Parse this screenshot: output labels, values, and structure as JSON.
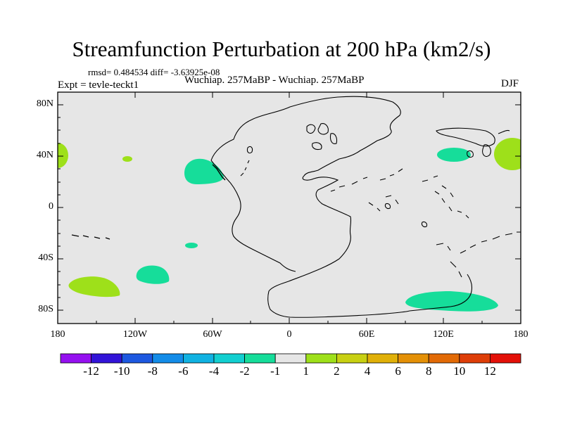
{
  "title": "Streamfunction Perturbation at 200 hPa (km2/s)",
  "stats": "rmsd= 0.484534 diff= -3.63925e-08",
  "experiment": "Expt = tevle-teckt1",
  "subtitle": "Wuchiap. 257MaBP - Wuchiap. 257MaBP",
  "season": "DJF",
  "lat_labels": [
    "80N",
    "40N",
    "0",
    "40S",
    "80S"
  ],
  "lon_labels": [
    "180",
    "120W",
    "60W",
    "0",
    "60E",
    "120E",
    "180"
  ],
  "colorbar": {
    "labels": [
      "-12",
      "-10",
      "-8",
      "-6",
      "-4",
      "-2",
      "-1",
      "1",
      "2",
      "4",
      "6",
      "8",
      "10",
      "12"
    ],
    "colors": [
      "#9510f0",
      "#3214d8",
      "#1d58e0",
      "#138ce8",
      "#10b2e2",
      "#12cfd0",
      "#16dd9a",
      "#e6e6e6",
      "#9ee01a",
      "#c8d012",
      "#e0b008",
      "#e49006",
      "#e26a06",
      "#de3e08",
      "#e31008"
    ]
  }
}
